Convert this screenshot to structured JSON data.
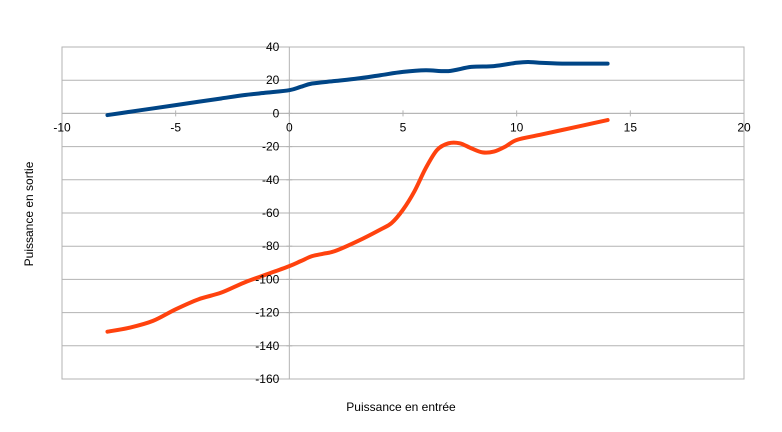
{
  "chart_data": {
    "type": "line",
    "title": "",
    "xlabel": "Puissance en entrée",
    "ylabel": "Puissance en sortie",
    "xlim": [
      -10,
      20
    ],
    "ylim": [
      -160,
      40
    ],
    "x_ticks": [
      -10,
      -5,
      0,
      5,
      10,
      15,
      20
    ],
    "y_ticks": [
      40,
      20,
      0,
      -20,
      -40,
      -60,
      -80,
      -100,
      -120,
      -140,
      -160
    ],
    "grid": true,
    "legend": "none",
    "series": [
      {
        "color": "#004586",
        "x": [
          -8,
          -7,
          -6,
          -5,
          -4,
          -3,
          -2,
          -1,
          0,
          0.5,
          1,
          2,
          3,
          4,
          5,
          6,
          7,
          8,
          9,
          10,
          10.5,
          11,
          12,
          13,
          14
        ],
        "y": [
          -1,
          1,
          3,
          5,
          7,
          9,
          11,
          12.5,
          14,
          16,
          18,
          19.5,
          21,
          23,
          25,
          26,
          25.5,
          28,
          28.5,
          30.5,
          31,
          30.5,
          30,
          30,
          30
        ]
      },
      {
        "color": "#ff420e",
        "x": [
          -8,
          -7,
          -6,
          -5,
          -4,
          -3,
          -2,
          -1,
          0,
          0.5,
          1,
          1.5,
          2,
          3,
          4,
          4.5,
          5,
          5.5,
          6,
          6.5,
          7,
          7.5,
          8,
          8.5,
          9,
          9.5,
          10,
          11,
          12,
          13,
          14
        ],
        "y": [
          -131.5,
          -129,
          -125,
          -118,
          -112,
          -108,
          -102,
          -97,
          -92,
          -89,
          -86,
          -84.5,
          -83,
          -77,
          -70,
          -66,
          -58,
          -47,
          -33,
          -22,
          -18,
          -18,
          -21,
          -23.5,
          -23,
          -20,
          -16,
          -13,
          -10,
          -7,
          -4
        ]
      }
    ]
  }
}
